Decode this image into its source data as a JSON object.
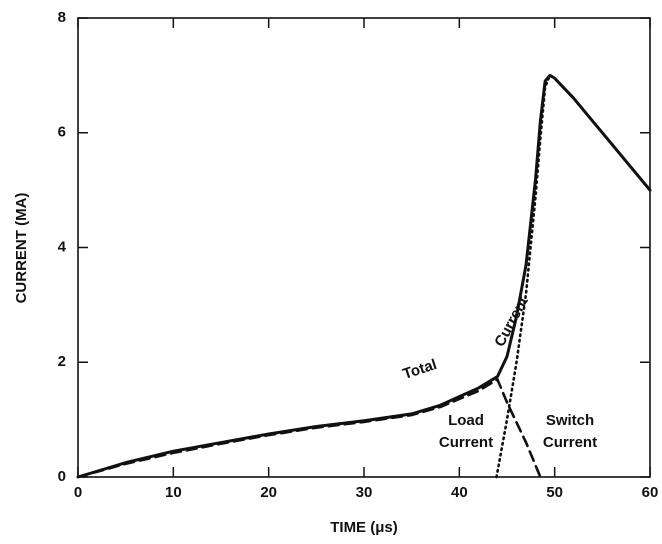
{
  "chart_data": {
    "type": "line",
    "xlabel": "TIME (μs)",
    "ylabel": "CURRENT (MA)",
    "xlim": [
      0,
      60
    ],
    "xticks": [
      0,
      10,
      20,
      30,
      40,
      50,
      60
    ],
    "ylim": [
      0,
      8
    ],
    "yticks": [
      0,
      2,
      4,
      6,
      8
    ],
    "series": [
      {
        "color": "#111111",
        "style": "solid",
        "x": [
          0,
          5,
          10,
          15,
          20,
          25,
          30,
          35,
          38,
          40,
          42,
          44,
          45,
          46,
          47,
          48,
          48.5,
          49,
          49.5,
          50,
          52,
          54,
          56,
          58,
          60
        ],
        "values": [
          0,
          0.25,
          0.45,
          0.6,
          0.75,
          0.88,
          0.98,
          1.1,
          1.25,
          1.4,
          1.55,
          1.75,
          2.1,
          2.8,
          3.7,
          5.2,
          6.2,
          6.9,
          7.0,
          6.95,
          6.6,
          6.2,
          5.8,
          5.4,
          5.0
        ]
      },
      {
        "color": "#111111",
        "style": "dashed",
        "x": [
          0,
          5,
          10,
          15,
          20,
          25,
          30,
          35,
          38,
          40,
          42,
          44,
          45,
          46,
          47,
          48,
          48.5
        ],
        "values": [
          0,
          0.23,
          0.42,
          0.58,
          0.73,
          0.86,
          0.96,
          1.08,
          1.22,
          1.36,
          1.5,
          1.7,
          1.3,
          0.95,
          0.6,
          0.2,
          0
        ]
      },
      {
        "color": "#111111",
        "style": "dotted",
        "x": [
          43.9,
          45,
          46,
          47,
          48,
          48.5,
          49,
          49.5,
          50,
          52,
          54,
          56,
          58,
          60
        ],
        "values": [
          0,
          1.0,
          2.0,
          3.2,
          4.9,
          5.9,
          6.8,
          7.0,
          6.95,
          6.6,
          6.2,
          5.8,
          5.4,
          5.0
        ]
      }
    ],
    "annotations": [
      "Total",
      "Current",
      "Load",
      "Current",
      "Switch",
      "Current"
    ]
  }
}
